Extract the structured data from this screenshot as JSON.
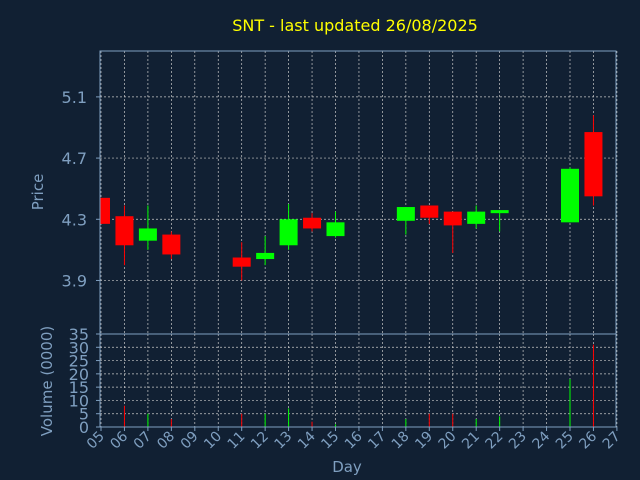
{
  "chart_data": {
    "type": "candlestick",
    "title": "SNT - last updated 26/08/2025",
    "xlabel": "Day",
    "ylabel_price": "Price",
    "ylabel_volume": "Volume (0000)",
    "x_ticks": [
      "05",
      "06",
      "07",
      "08",
      "09",
      "10",
      "11",
      "12",
      "13",
      "14",
      "15",
      "16",
      "17",
      "18",
      "19",
      "20",
      "21",
      "22",
      "23",
      "24",
      "25",
      "26",
      "27"
    ],
    "price_ylim": [
      3.55,
      5.4
    ],
    "price_ticks": [
      "3.9",
      "4.3",
      "4.7",
      "5.1"
    ],
    "volume_ylim": [
      0,
      35
    ],
    "volume_ticks": [
      "0",
      "5",
      "10",
      "15",
      "20",
      "25",
      "30",
      "35"
    ],
    "grid": true,
    "colors": {
      "background": "#112033",
      "up": "#00ff00",
      "down": "#ff0000",
      "title": "#ffff00",
      "axis_text": "#7f9fc0",
      "frame": "#7f9fc0",
      "grid": "#c8c8c8"
    },
    "candles": [
      {
        "day": "05",
        "open": 4.44,
        "close": 4.27,
        "high": 4.44,
        "low": 4.27,
        "volume": 0
      },
      {
        "day": "06",
        "open": 4.32,
        "close": 4.13,
        "high": 4.39,
        "low": 4.0,
        "volume": 8
      },
      {
        "day": "07",
        "open": 4.16,
        "close": 4.24,
        "high": 4.39,
        "low": 4.1,
        "volume": 5
      },
      {
        "day": "08",
        "open": 4.2,
        "close": 4.07,
        "high": 4.22,
        "low": 4.04,
        "volume": 3
      },
      {
        "day": "11",
        "open": 4.05,
        "close": 3.99,
        "high": 4.15,
        "low": 3.9,
        "volume": 5
      },
      {
        "day": "12",
        "open": 4.04,
        "close": 4.08,
        "high": 4.19,
        "low": 4.0,
        "volume": 5
      },
      {
        "day": "13",
        "open": 4.13,
        "close": 4.3,
        "high": 4.4,
        "low": 4.1,
        "volume": 7
      },
      {
        "day": "14",
        "open": 4.31,
        "close": 4.24,
        "high": 4.34,
        "low": 4.22,
        "volume": 2
      },
      {
        "day": "15",
        "open": 4.19,
        "close": 4.28,
        "high": 4.35,
        "low": 4.18,
        "volume": 1
      },
      {
        "day": "18",
        "open": 4.29,
        "close": 4.38,
        "high": 4.38,
        "low": 4.2,
        "volume": 3
      },
      {
        "day": "19",
        "open": 4.39,
        "close": 4.31,
        "high": 4.39,
        "low": 4.27,
        "volume": 5
      },
      {
        "day": "20",
        "open": 4.35,
        "close": 4.26,
        "high": 4.35,
        "low": 4.08,
        "volume": 5
      },
      {
        "day": "21",
        "open": 4.27,
        "close": 4.35,
        "high": 4.39,
        "low": 4.24,
        "volume": 3
      },
      {
        "day": "22",
        "open": 4.34,
        "close": 4.36,
        "high": 4.36,
        "low": 4.22,
        "volume": 4
      },
      {
        "day": "25",
        "open": 4.28,
        "close": 4.63,
        "high": 4.64,
        "low": 4.28,
        "volume": 18
      },
      {
        "day": "26",
        "open": 4.87,
        "close": 4.45,
        "high": 4.98,
        "low": 4.39,
        "volume": 31
      }
    ]
  }
}
